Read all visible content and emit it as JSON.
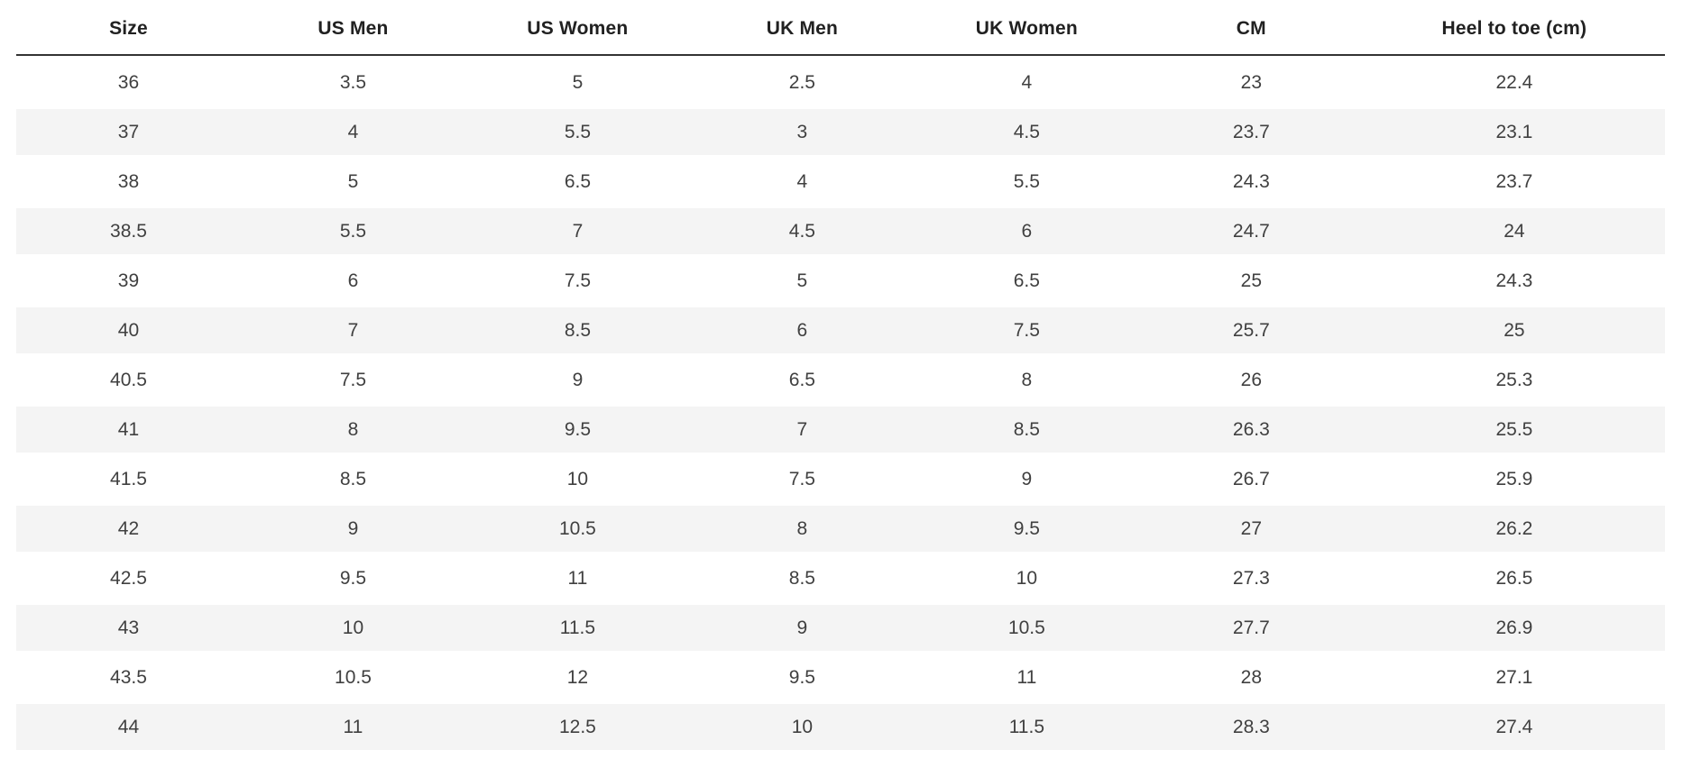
{
  "page": {
    "background": "#ffffff"
  },
  "chart_data": {
    "type": "table",
    "columns": [
      "Size",
      "US Men",
      "US Women",
      "UK Men",
      "UK Women",
      "CM",
      "Heel to toe (cm)"
    ],
    "rows": [
      [
        "36",
        "3.5",
        "5",
        "2.5",
        "4",
        "23",
        "22.4"
      ],
      [
        "37",
        "4",
        "5.5",
        "3",
        "4.5",
        "23.7",
        "23.1"
      ],
      [
        "38",
        "5",
        "6.5",
        "4",
        "5.5",
        "24.3",
        "23.7"
      ],
      [
        "38.5",
        "5.5",
        "7",
        "4.5",
        "6",
        "24.7",
        "24"
      ],
      [
        "39",
        "6",
        "7.5",
        "5",
        "6.5",
        "25",
        "24.3"
      ],
      [
        "40",
        "7",
        "8.5",
        "6",
        "7.5",
        "25.7",
        "25"
      ],
      [
        "40.5",
        "7.5",
        "9",
        "6.5",
        "8",
        "26",
        "25.3"
      ],
      [
        "41",
        "8",
        "9.5",
        "7",
        "8.5",
        "26.3",
        "25.5"
      ],
      [
        "41.5",
        "8.5",
        "10",
        "7.5",
        "9",
        "26.7",
        "25.9"
      ],
      [
        "42",
        "9",
        "10.5",
        "8",
        "9.5",
        "27",
        "26.2"
      ],
      [
        "42.5",
        "9.5",
        "11",
        "8.5",
        "10",
        "27.3",
        "26.5"
      ],
      [
        "43",
        "10",
        "11.5",
        "9",
        "10.5",
        "27.7",
        "26.9"
      ],
      [
        "43.5",
        "10.5",
        "12",
        "9.5",
        "11",
        "28",
        "27.1"
      ],
      [
        "44",
        "11",
        "12.5",
        "10",
        "11.5",
        "28.3",
        "27.4"
      ]
    ],
    "layout": {
      "striped_rows": "even",
      "header_divider": true,
      "legend": "none",
      "grid": "off"
    },
    "colors": {
      "stripe": "#f4f4f4",
      "header_border": "#333333",
      "header_text": "#212121",
      "cell_text": "#404040",
      "background": "#ffffff"
    }
  }
}
